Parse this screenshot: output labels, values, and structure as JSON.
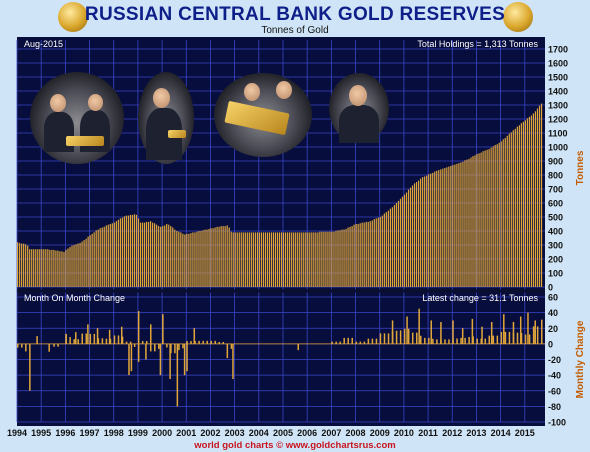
{
  "header": {
    "title": "RUSSIAN CENTRAL BANK GOLD RESERVES",
    "subtitle": "Tonnes of Gold",
    "date_label": "Aug-2015",
    "total_label": "Total Holdings = 1,313 Tonnes",
    "change_panel_label": "Month On Month Change",
    "latest_change_label": "Latest change = 31.1 Tonnes",
    "footer": "world gold charts © www.goldchartsrus.com"
  },
  "colors": {
    "background": "#cfe5f7",
    "plot": "#070d3c",
    "grid": "#3b46c8",
    "bar": "#e0a63a",
    "title": "#0f1f8a",
    "footer": "#c8141e",
    "axis_label": "#c45b00"
  },
  "chart_data": [
    {
      "type": "bar",
      "ylabel": "Tonnes",
      "ylim": [
        0,
        1700
      ],
      "y_ticks": [
        "0",
        "100",
        "200",
        "300",
        "400",
        "500",
        "600",
        "700",
        "800",
        "900",
        "1000",
        "1100",
        "1200",
        "1300",
        "1400",
        "1500",
        "1600",
        "1700"
      ],
      "x_ticks": [
        "1994",
        "1995",
        "1996",
        "1997",
        "1998",
        "1999",
        "2000",
        "2001",
        "2002",
        "2003",
        "2004",
        "2005",
        "2006",
        "2007",
        "2008",
        "2009",
        "2010",
        "2011",
        "2012",
        "2013",
        "2014",
        "2015"
      ],
      "x_range": [
        1994,
        2015.67
      ],
      "anchors": [
        [
          1994.0,
          320
        ],
        [
          1994.4,
          300
        ],
        [
          1994.5,
          270
        ],
        [
          1995.0,
          270
        ],
        [
          1995.5,
          265
        ],
        [
          1995.9,
          250
        ],
        [
          1996.2,
          290
        ],
        [
          1996.6,
          315
        ],
        [
          1997.0,
          370
        ],
        [
          1997.3,
          410
        ],
        [
          1997.7,
          440
        ],
        [
          1998.0,
          460
        ],
        [
          1998.4,
          505
        ],
        [
          1998.9,
          520
        ],
        [
          1999.1,
          455
        ],
        [
          1999.5,
          470
        ],
        [
          1999.9,
          430
        ],
        [
          2000.2,
          450
        ],
        [
          2000.6,
          400
        ],
        [
          2000.9,
          375
        ],
        [
          2001.3,
          390
        ],
        [
          2001.8,
          410
        ],
        [
          2002.3,
          430
        ],
        [
          2002.7,
          440
        ],
        [
          2002.85,
          390
        ],
        [
          2006.0,
          390
        ],
        [
          2007.0,
          395
        ],
        [
          2007.5,
          410
        ],
        [
          2008.0,
          450
        ],
        [
          2008.5,
          465
        ],
        [
          2009.0,
          500
        ],
        [
          2009.5,
          570
        ],
        [
          2009.9,
          640
        ],
        [
          2010.3,
          720
        ],
        [
          2010.7,
          780
        ],
        [
          2011.2,
          820
        ],
        [
          2011.7,
          850
        ],
        [
          2012.2,
          880
        ],
        [
          2012.7,
          920
        ],
        [
          2013.0,
          950
        ],
        [
          2013.5,
          985
        ],
        [
          2014.0,
          1040
        ],
        [
          2014.5,
          1120
        ],
        [
          2014.9,
          1180
        ],
        [
          2015.3,
          1230
        ],
        [
          2015.6,
          1300
        ],
        [
          2015.67,
          1313
        ]
      ]
    },
    {
      "type": "bar",
      "ylabel": "Monthly Change",
      "ylim": [
        -100,
        60
      ],
      "y_ticks": [
        "60",
        "40",
        "20",
        "0",
        "-20",
        "-40",
        "-60",
        "-80",
        "-100"
      ],
      "events": [
        [
          1994.5,
          -60
        ],
        [
          1994.8,
          10
        ],
        [
          1995.3,
          -10
        ],
        [
          1996.0,
          12
        ],
        [
          1996.4,
          15
        ],
        [
          1996.9,
          25
        ],
        [
          1997.3,
          20
        ],
        [
          1997.8,
          18
        ],
        [
          1998.3,
          22
        ],
        [
          1998.6,
          -40
        ],
        [
          1998.7,
          -35
        ],
        [
          1999.0,
          42
        ],
        [
          1999.3,
          -20
        ],
        [
          1999.5,
          25
        ],
        [
          1999.9,
          -40
        ],
        [
          2000.0,
          38
        ],
        [
          2000.3,
          -45
        ],
        [
          2000.6,
          -80
        ],
        [
          2000.9,
          -40
        ],
        [
          2001.0,
          -35
        ],
        [
          2001.3,
          20
        ],
        [
          2002.9,
          -45
        ],
        [
          2005.6,
          -8
        ],
        [
          2009.5,
          30
        ],
        [
          2010.1,
          35
        ],
        [
          2010.6,
          45
        ],
        [
          2011.1,
          30
        ],
        [
          2011.5,
          28
        ],
        [
          2012.0,
          30
        ],
        [
          2012.4,
          20
        ],
        [
          2012.8,
          32
        ],
        [
          2013.2,
          22
        ],
        [
          2013.6,
          28
        ],
        [
          2014.1,
          38
        ],
        [
          2014.5,
          28
        ],
        [
          2014.8,
          35
        ],
        [
          2015.1,
          40
        ],
        [
          2015.4,
          30
        ],
        [
          2015.67,
          31
        ]
      ]
    }
  ]
}
